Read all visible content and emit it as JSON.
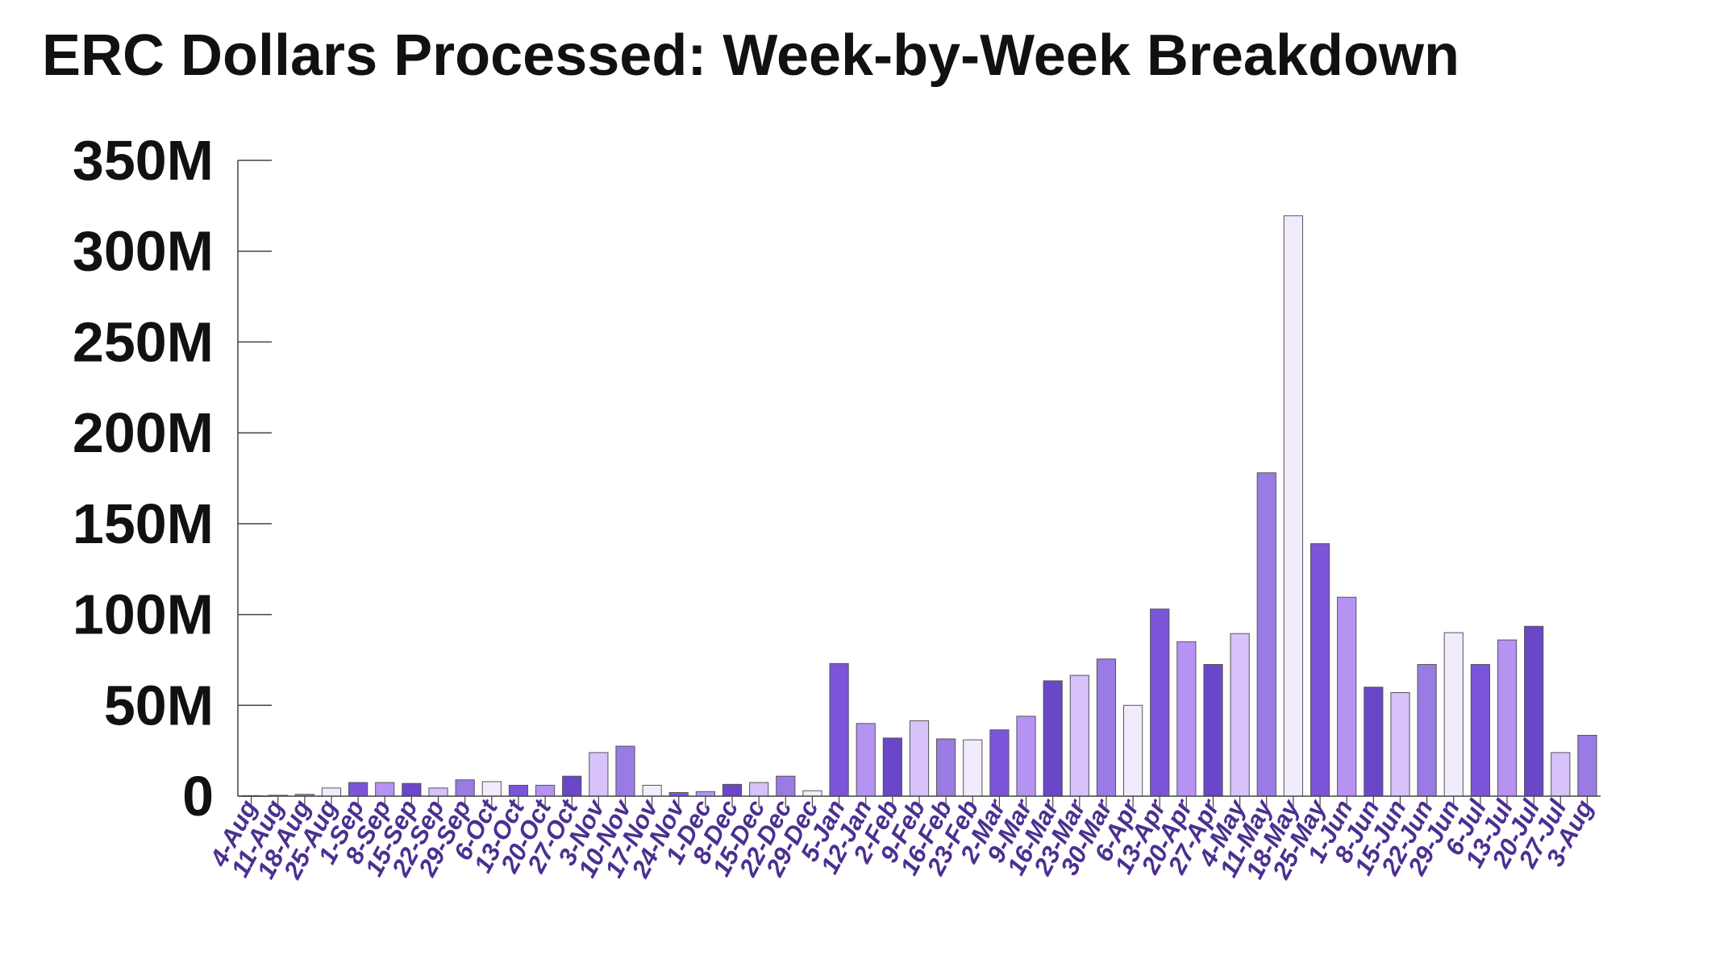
{
  "chart_data": {
    "type": "bar",
    "title": "ERC Dollars Processed: Week-by-Week Breakdown",
    "xlabel": "",
    "ylabel": "",
    "ylim": [
      0,
      350
    ],
    "yticks": [
      0,
      50,
      100,
      150,
      200,
      250,
      300,
      350
    ],
    "ytick_labels": [
      "0",
      "50M",
      "100M",
      "150M",
      "200M",
      "250M",
      "300M",
      "350M"
    ],
    "grid": false,
    "legend": "none",
    "categories": [
      "4-Aug",
      "11-Aug",
      "18-Aug",
      "25-Aug",
      "1-Sep",
      "8-Sep",
      "15-Sep",
      "22-Sep",
      "29-Sep",
      "6-Oct",
      "13-Oct",
      "20-Oct",
      "27-Oct",
      "3-Nov",
      "10-Nov",
      "17-Nov",
      "24-Nov",
      "1-Dec",
      "8-Dec",
      "15-Dec",
      "22-Dec",
      "29-Dec",
      "5-Jan",
      "12-Jan",
      "2-Feb",
      "9-Feb",
      "16-Feb",
      "23-Feb",
      "2-Mar",
      "9-Mar",
      "16-Mar",
      "23-Mar",
      "30-Mar",
      "6-Apr",
      "13-Apr",
      "20-Apr",
      "27-Apr",
      "4-May",
      "11-May",
      "18-May",
      "25-May",
      "1-Jun",
      "8-Jun",
      "15-Jun",
      "22-Jun",
      "29-Jun",
      "6-Jul",
      "13-Jul",
      "20-Jul",
      "27-Jul",
      "3-Aug"
    ],
    "values": [
      0.3,
      0.5,
      1,
      4.5,
      7.5,
      7.5,
      7,
      4.5,
      9,
      8,
      6,
      6,
      11,
      24,
      27.5,
      6,
      2,
      2.5,
      6.5,
      7.5,
      11,
      3,
      73,
      40,
      32,
      41.5,
      31.5,
      31,
      36.5,
      44,
      63.5,
      66.5,
      75.5,
      50,
      103,
      85,
      72.5,
      89.5,
      178,
      319.5,
      139,
      109.5,
      60,
      57,
      72.5,
      90,
      72.5,
      86,
      93.5,
      24,
      33.5
    ],
    "colors": [
      "#6a46c9",
      "#d7c2f9",
      "#9a7be3",
      "#f2ebfd",
      "#7a55d9",
      "#b693f3"
    ],
    "edge_color": "#555555",
    "tick_label_color": "#4b2f91"
  }
}
